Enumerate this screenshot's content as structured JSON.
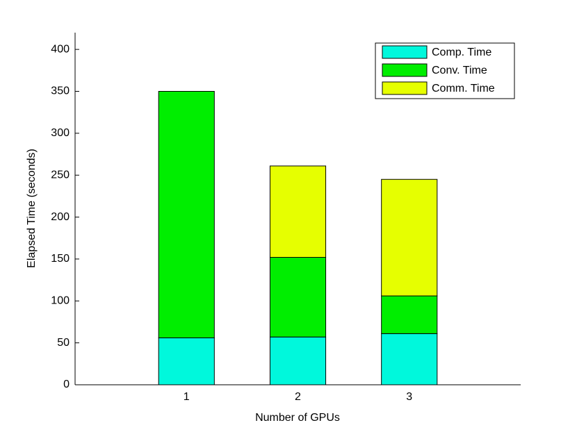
{
  "chart_data": {
    "type": "stacked_bar",
    "x": [
      1,
      2,
      3
    ],
    "xlim": [
      0,
      4
    ],
    "xticks": [
      1,
      2,
      3
    ],
    "xlabel": "Number of GPUs",
    "ylabel": "Elapsed Time (seconds)",
    "ylim": [
      0,
      420
    ],
    "yticks": [
      0,
      50,
      100,
      150,
      200,
      250,
      300,
      350,
      400
    ],
    "legend": "upper right",
    "series": [
      {
        "name": "Comp. Time",
        "color": "#00f8dc",
        "values": [
          56,
          57,
          61
        ]
      },
      {
        "name": "Conv. Time",
        "color": "#00ee00",
        "values": [
          294,
          95,
          45
        ]
      },
      {
        "name": "Comm. Time",
        "color": "#e6ff00",
        "values": [
          0,
          109,
          139
        ]
      }
    ]
  }
}
